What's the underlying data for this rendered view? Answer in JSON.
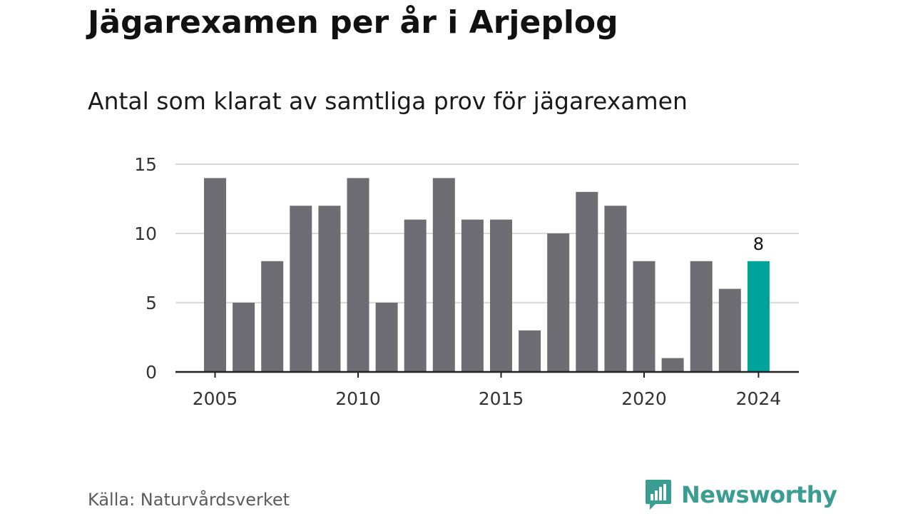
{
  "header": {
    "title": "Jägarexamen per år i Arjeplog",
    "subtitle": "Antal som klarat av samtliga prov för jägarexamen"
  },
  "footer": {
    "source": "Källa: Naturvårdsverket",
    "brand": "Newsworthy",
    "brand_color": "#3a9d92",
    "brand_icon": "bar-chart-speech-bubble-icon"
  },
  "colors": {
    "bar_default": "#6e6d73",
    "bar_highlight": "#00a39a",
    "grid": "#d9d9d9",
    "axis": "#222222"
  },
  "chart_data": {
    "type": "bar",
    "title": "Jägarexamen per år i Arjeplog",
    "subtitle": "Antal som klarat av samtliga prov för jägarexamen",
    "xlabel": "",
    "ylabel": "",
    "categories": [
      2005,
      2006,
      2007,
      2008,
      2009,
      2010,
      2011,
      2012,
      2013,
      2014,
      2015,
      2016,
      2017,
      2018,
      2019,
      2020,
      2021,
      2022,
      2023,
      2024
    ],
    "values": [
      14,
      5,
      8,
      12,
      12,
      14,
      5,
      11,
      14,
      11,
      11,
      3,
      10,
      13,
      12,
      8,
      1,
      8,
      6,
      8
    ],
    "x_tick_labels": [
      "2005",
      "2010",
      "2015",
      "2020",
      "2024"
    ],
    "y_ticks": [
      0,
      5,
      10,
      15
    ],
    "ylim": [
      0,
      15
    ],
    "grid": true,
    "highlight": {
      "category": 2024,
      "label": "8"
    },
    "legend": "none"
  }
}
